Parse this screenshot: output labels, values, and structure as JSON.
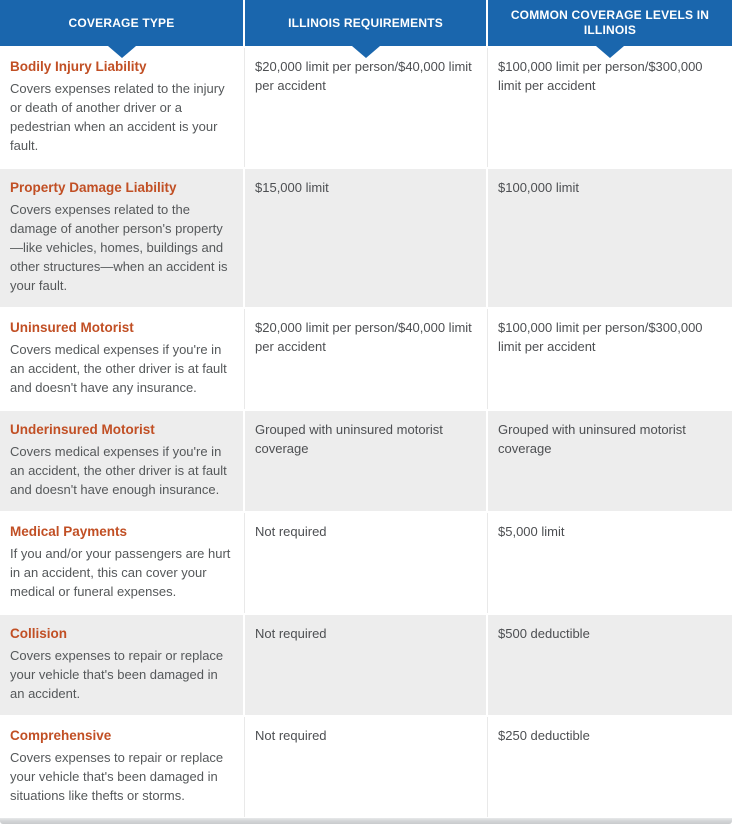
{
  "table": {
    "columns": [
      {
        "label": "COVERAGE TYPE"
      },
      {
        "label": "ILLINOIS REQUIREMENTS"
      },
      {
        "label": "COMMON COVERAGE LEVELS IN ILLINOIS"
      }
    ],
    "rows": [
      {
        "coverage_type": "Bodily Injury Liability",
        "description": "Covers expenses related to the injury or death of another driver or a pedestrian when an accident is your fault.",
        "illinois_requirement": "$20,000 limit per person/$40,000 limit per accident",
        "common_coverage_level": "$100,000 limit per person/$300,000 limit per accident"
      },
      {
        "coverage_type": "Property Damage Liability",
        "description": "Covers expenses related to the damage of another person's property—like vehicles, homes, buildings and other structures—when an accident is your fault.",
        "illinois_requirement": "$15,000 limit",
        "common_coverage_level": "$100,000 limit"
      },
      {
        "coverage_type": "Uninsured Motorist",
        "description": "Covers medical expenses if you're in an accident, the other driver is at fault and doesn't have any insurance.",
        "illinois_requirement": "$20,000 limit per person/$40,000 limit per accident",
        "common_coverage_level": "$100,000 limit per person/$300,000 limit per accident"
      },
      {
        "coverage_type": "Underinsured Motorist",
        "description": "Covers medical expenses if you're in an accident, the other driver is at fault and doesn't have enough insurance.",
        "illinois_requirement": "Grouped with uninsured motorist coverage",
        "common_coverage_level": "Grouped with uninsured motorist coverage"
      },
      {
        "coverage_type": "Medical Payments",
        "description": "If you and/or your passengers are hurt in an accident, this can cover your medical or funeral expenses.",
        "illinois_requirement": "Not required",
        "common_coverage_level": "$5,000 limit"
      },
      {
        "coverage_type": "Collision",
        "description": "Covers expenses to repair or replace your vehicle that's been damaged in an accident.",
        "illinois_requirement": "Not required",
        "common_coverage_level": "$500 deductible"
      },
      {
        "coverage_type": "Comprehensive",
        "description": "Covers expenses to repair or replace your vehicle that's been damaged in situations like thefts or storms.",
        "illinois_requirement": "Not required",
        "common_coverage_level": "$250 deductible"
      }
    ],
    "colors": {
      "header_bg": "#1a66ad",
      "header_text": "#ffffff",
      "alt_row_bg": "#ededed",
      "coverage_title": "#c14f24",
      "body_text": "#55585a"
    }
  }
}
